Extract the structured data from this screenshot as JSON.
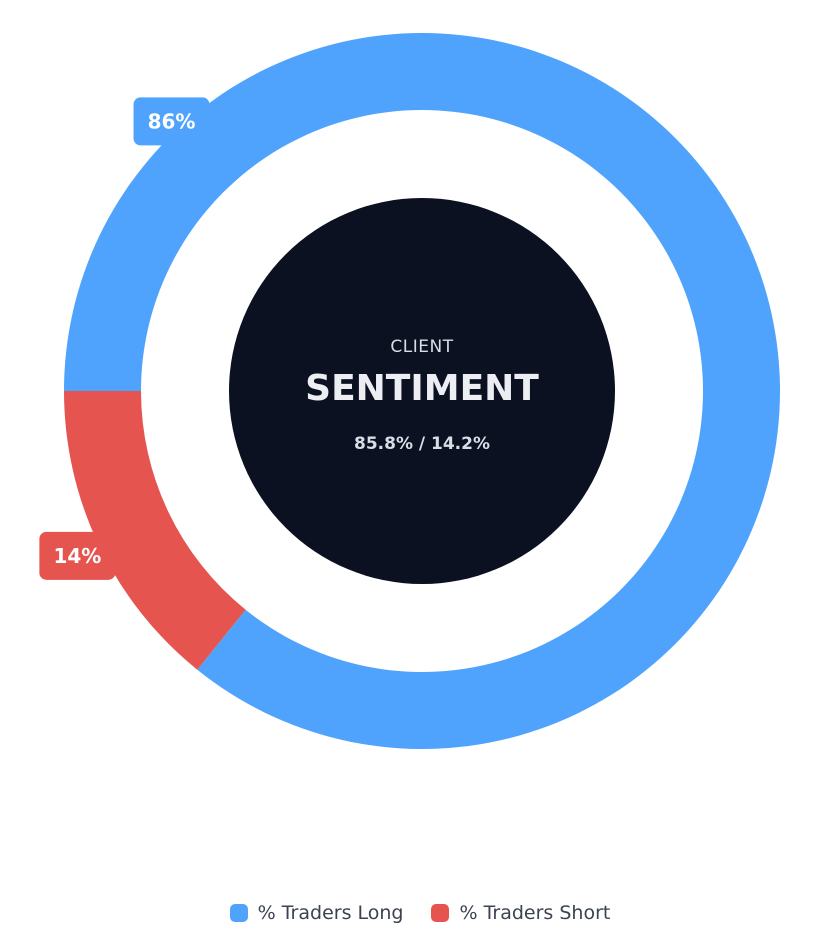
{
  "chart_data": {
    "type": "pie",
    "categories": [
      "% Traders Long",
      "% Traders Short"
    ],
    "values": [
      85.8,
      14.2
    ],
    "slice_labels": [
      "86%",
      "14%"
    ],
    "colors": [
      "#4fa3fd",
      "#e5544f"
    ],
    "legend_placement": "bottom"
  },
  "center": {
    "subtitle": "CLIENT",
    "title": "SENTIMENT",
    "values_text": "85.8% / 14.2%",
    "background": "#0b1120"
  },
  "legend": {
    "items": [
      {
        "label": "% Traders Long",
        "color": "#4fa3fd"
      },
      {
        "label": "% Traders Short",
        "color": "#e5544f"
      }
    ]
  }
}
